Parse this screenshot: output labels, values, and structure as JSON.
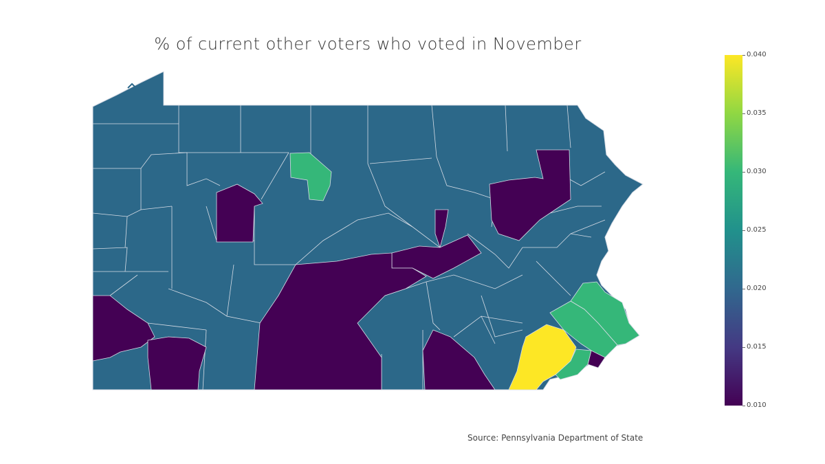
{
  "title": "% of current other voters who voted in November",
  "source": "Source: Pennsylvania Department of State",
  "colorscale": {
    "name": "Viridis",
    "min": 0.01,
    "max": 0.04,
    "ticks": [
      "0.040",
      "0.035",
      "0.030",
      "0.025",
      "0.020",
      "0.015",
      "0.010"
    ]
  },
  "colors": {
    "dominant": "#2c6889",
    "low": "#440154",
    "mid_green": "#35b779",
    "high": "#fde725",
    "border": "#d8dde6"
  }
}
